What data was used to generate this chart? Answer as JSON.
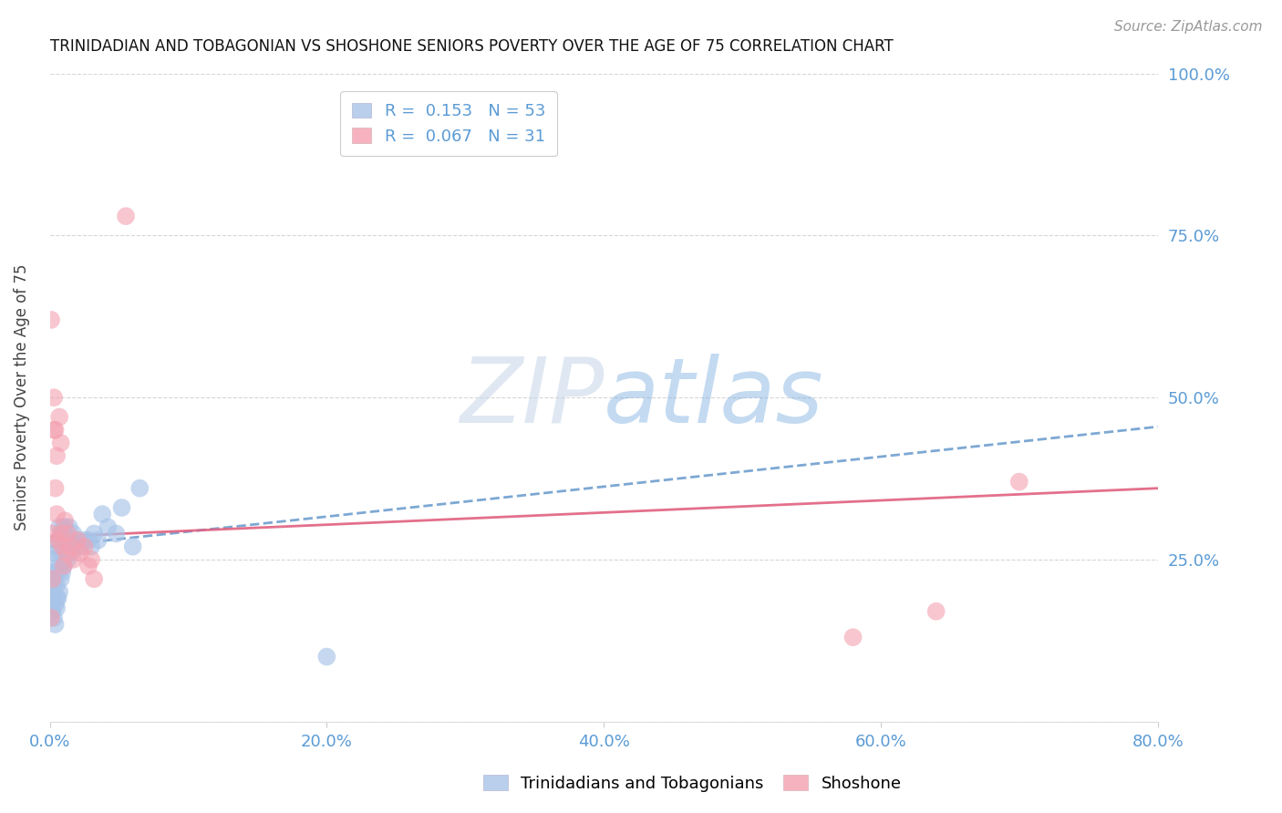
{
  "title": "TRINIDADIAN AND TOBAGONIAN VS SHOSHONE SENIORS POVERTY OVER THE AGE OF 75 CORRELATION CHART",
  "source": "Source: ZipAtlas.com",
  "ylabel": "Seniors Poverty Over the Age of 75",
  "watermark_zip": "ZIP",
  "watermark_atlas": "atlas",
  "legend1_label": "Trinidadians and Tobagonians",
  "legend2_label": "Shoshone",
  "r1": "0.153",
  "n1": "53",
  "r2": "0.067",
  "n2": "31",
  "xlim": [
    0.0,
    0.8
  ],
  "ylim": [
    0.0,
    1.0
  ],
  "xticks": [
    0.0,
    0.2,
    0.4,
    0.6,
    0.8
  ],
  "yticks": [
    0.25,
    0.5,
    0.75,
    1.0
  ],
  "color_blue": "#a8c4e8",
  "color_pink": "#f4a0b0",
  "color_trend_blue": "#6699cc",
  "color_trend_pink": "#e06080",
  "color_axis_labels": "#5b9bd5",
  "background": "#ffffff",
  "blue_x": [
    0.001,
    0.001,
    0.001,
    0.001,
    0.002,
    0.002,
    0.002,
    0.002,
    0.003,
    0.003,
    0.003,
    0.004,
    0.004,
    0.004,
    0.004,
    0.005,
    0.005,
    0.005,
    0.005,
    0.006,
    0.006,
    0.006,
    0.007,
    0.007,
    0.007,
    0.008,
    0.008,
    0.009,
    0.009,
    0.01,
    0.01,
    0.011,
    0.012,
    0.013,
    0.014,
    0.015,
    0.016,
    0.017,
    0.018,
    0.02,
    0.022,
    0.025,
    0.028,
    0.03,
    0.032,
    0.035,
    0.038,
    0.042,
    0.048,
    0.052,
    0.06,
    0.065,
    0.2
  ],
  "blue_y": [
    0.175,
    0.18,
    0.19,
    0.21,
    0.17,
    0.19,
    0.22,
    0.25,
    0.16,
    0.2,
    0.23,
    0.15,
    0.18,
    0.22,
    0.26,
    0.175,
    0.19,
    0.21,
    0.27,
    0.19,
    0.23,
    0.28,
    0.2,
    0.24,
    0.3,
    0.22,
    0.26,
    0.23,
    0.29,
    0.24,
    0.3,
    0.3,
    0.27,
    0.25,
    0.3,
    0.26,
    0.28,
    0.29,
    0.27,
    0.28,
    0.27,
    0.28,
    0.28,
    0.27,
    0.29,
    0.28,
    0.32,
    0.3,
    0.29,
    0.33,
    0.27,
    0.36,
    0.1
  ],
  "pink_x": [
    0.001,
    0.001,
    0.002,
    0.002,
    0.003,
    0.003,
    0.004,
    0.004,
    0.005,
    0.005,
    0.006,
    0.007,
    0.008,
    0.008,
    0.009,
    0.01,
    0.011,
    0.012,
    0.013,
    0.015,
    0.017,
    0.02,
    0.022,
    0.025,
    0.028,
    0.03,
    0.032,
    0.055,
    0.58,
    0.64,
    0.7
  ],
  "pink_y": [
    0.62,
    0.16,
    0.22,
    0.29,
    0.45,
    0.5,
    0.36,
    0.45,
    0.32,
    0.41,
    0.28,
    0.47,
    0.29,
    0.43,
    0.27,
    0.24,
    0.31,
    0.26,
    0.29,
    0.27,
    0.25,
    0.28,
    0.26,
    0.27,
    0.24,
    0.25,
    0.22,
    0.78,
    0.13,
    0.17,
    0.37
  ],
  "trend_blue_x0": 0.0,
  "trend_blue_y0": 0.27,
  "trend_blue_x1": 0.8,
  "trend_blue_y1": 0.455,
  "trend_pink_x0": 0.0,
  "trend_pink_y0": 0.285,
  "trend_pink_x1": 0.8,
  "trend_pink_y1": 0.36
}
